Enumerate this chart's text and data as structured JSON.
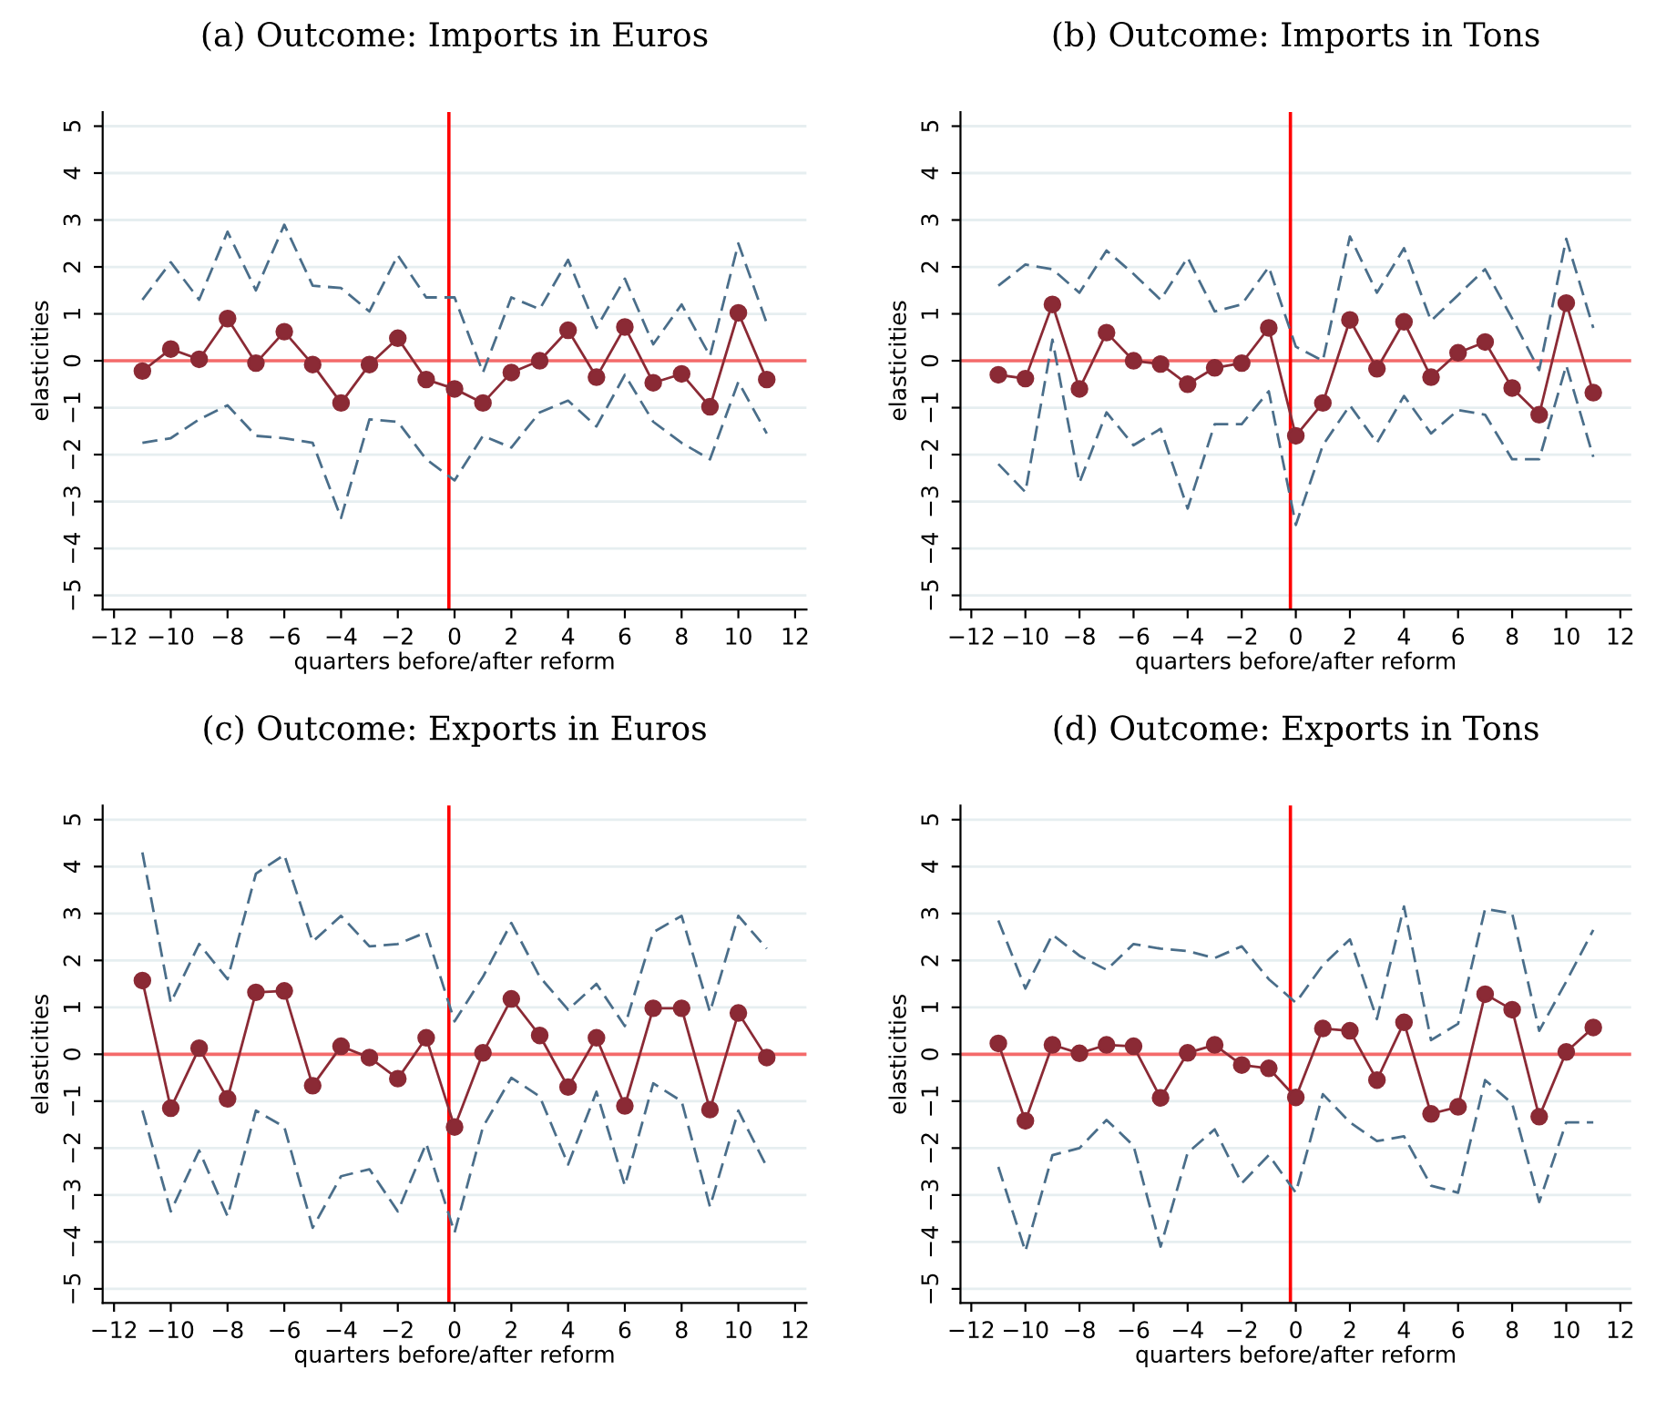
{
  "chart_data": [
    {
      "type": "line",
      "title": "(a) Outcome: Imports in Euros",
      "xlabel": "quarters before/after reform",
      "ylabel": "elasticities",
      "x": [
        -11,
        -10,
        -9,
        -8,
        -7,
        -6,
        -5,
        -4,
        -3,
        -2,
        -1,
        0,
        1,
        2,
        3,
        4,
        5,
        6,
        7,
        8,
        9,
        10,
        11
      ],
      "xlim": [
        -12.4,
        12.4
      ],
      "xticks": [
        -12,
        -10,
        -8,
        -6,
        -4,
        -2,
        0,
        2,
        4,
        6,
        8,
        10,
        12
      ],
      "ylim": [
        -5.3,
        5.3
      ],
      "yticks": [
        -5,
        -4,
        -3,
        -2,
        -1,
        0,
        1,
        2,
        3,
        4,
        5
      ],
      "grid": "y",
      "legend": false,
      "series": [
        {
          "color": "#4a6e8a",
          "line_style": "dashed",
          "marker": "none",
          "values": [
            1.3,
            2.1,
            1.3,
            2.75,
            1.5,
            2.9,
            1.6,
            1.55,
            1.05,
            2.25,
            1.35,
            1.35,
            -0.25,
            1.35,
            1.1,
            2.15,
            0.7,
            1.75,
            0.35,
            1.2,
            0.1,
            2.5,
            0.8
          ]
        },
        {
          "color": "#4a6e8a",
          "line_style": "dashed",
          "marker": "none",
          "values": [
            -1.75,
            -1.65,
            -1.25,
            -0.95,
            -1.6,
            -1.65,
            -1.75,
            -3.35,
            -1.25,
            -1.3,
            -2.1,
            -2.55,
            -1.6,
            -1.85,
            -1.1,
            -0.85,
            -1.4,
            -0.3,
            -1.3,
            -1.75,
            -2.1,
            -0.45,
            -1.55
          ]
        },
        {
          "color": "#8b2a35",
          "line_style": "solid",
          "marker": "circle",
          "values": [
            -0.22,
            0.25,
            0.03,
            0.9,
            -0.05,
            0.62,
            -0.08,
            -0.9,
            -0.08,
            0.48,
            -0.4,
            -0.6,
            -0.9,
            -0.25,
            0.0,
            0.65,
            -0.35,
            0.72,
            -0.47,
            -0.28,
            -0.98,
            1.02,
            -0.4
          ]
        }
      ],
      "ref_lines": [
        {
          "axis": "y",
          "value": 0,
          "color": "#f46a6a"
        },
        {
          "axis": "x",
          "value": -0.2,
          "color": "#ff0000"
        }
      ]
    },
    {
      "type": "line",
      "title": "(b) Outcome: Imports in Tons",
      "xlabel": "quarters before/after reform",
      "ylabel": "elasticities",
      "x": [
        -11,
        -10,
        -9,
        -8,
        -7,
        -6,
        -5,
        -4,
        -3,
        -2,
        -1,
        0,
        1,
        2,
        3,
        4,
        5,
        6,
        7,
        8,
        9,
        10,
        11
      ],
      "xlim": [
        -12.4,
        12.4
      ],
      "xticks": [
        -12,
        -10,
        -8,
        -6,
        -4,
        -2,
        0,
        2,
        4,
        6,
        8,
        10,
        12
      ],
      "ylim": [
        -5.3,
        5.3
      ],
      "yticks": [
        -5,
        -4,
        -3,
        -2,
        -1,
        0,
        1,
        2,
        3,
        4,
        5
      ],
      "grid": "y",
      "legend": false,
      "series": [
        {
          "color": "#4a6e8a",
          "line_style": "dashed",
          "marker": "none",
          "values": [
            1.6,
            2.05,
            1.95,
            1.45,
            2.35,
            1.85,
            1.3,
            2.2,
            1.05,
            1.2,
            2.0,
            0.3,
            0.0,
            2.65,
            1.45,
            2.4,
            0.85,
            1.4,
            1.95,
            0.9,
            -0.2,
            2.6,
            0.7
          ]
        },
        {
          "color": "#4a6e8a",
          "line_style": "dashed",
          "marker": "none",
          "values": [
            -2.2,
            -2.8,
            0.45,
            -2.6,
            -1.1,
            -1.8,
            -1.45,
            -3.15,
            -1.35,
            -1.35,
            -0.65,
            -3.5,
            -1.8,
            -0.95,
            -1.75,
            -0.75,
            -1.55,
            -1.05,
            -1.15,
            -2.1,
            -2.1,
            -0.1,
            -2.05
          ]
        },
        {
          "color": "#8b2a35",
          "line_style": "solid",
          "marker": "circle",
          "values": [
            -0.3,
            -0.38,
            1.2,
            -0.6,
            0.6,
            0.0,
            -0.07,
            -0.5,
            -0.15,
            -0.05,
            0.7,
            -1.6,
            -0.9,
            0.87,
            -0.17,
            0.83,
            -0.35,
            0.17,
            0.4,
            -0.58,
            -1.15,
            1.23,
            -0.68
          ]
        }
      ],
      "ref_lines": [
        {
          "axis": "y",
          "value": 0,
          "color": "#f46a6a"
        },
        {
          "axis": "x",
          "value": -0.2,
          "color": "#ff0000"
        }
      ]
    },
    {
      "type": "line",
      "title": "(c) Outcome: Exports in Euros",
      "xlabel": "quarters before/after reform",
      "ylabel": "elasticities",
      "x": [
        -11,
        -10,
        -9,
        -8,
        -7,
        -6,
        -5,
        -4,
        -3,
        -2,
        -1,
        0,
        1,
        2,
        3,
        4,
        5,
        6,
        7,
        8,
        9,
        10,
        11
      ],
      "xlim": [
        -12.4,
        12.4
      ],
      "xticks": [
        -12,
        -10,
        -8,
        -6,
        -4,
        -2,
        0,
        2,
        4,
        6,
        8,
        10,
        12
      ],
      "ylim": [
        -5.3,
        5.3
      ],
      "yticks": [
        -5,
        -4,
        -3,
        -2,
        -1,
        0,
        1,
        2,
        3,
        4,
        5
      ],
      "grid": "y",
      "legend": false,
      "series": [
        {
          "color": "#4a6e8a",
          "line_style": "dashed",
          "marker": "none",
          "values": [
            4.3,
            1.1,
            2.35,
            1.6,
            3.85,
            4.25,
            2.4,
            2.95,
            2.3,
            2.35,
            2.6,
            0.7,
            1.65,
            2.8,
            1.65,
            0.95,
            1.5,
            0.6,
            2.6,
            2.95,
            0.9,
            2.95,
            2.25
          ]
        },
        {
          "color": "#4a6e8a",
          "line_style": "dashed",
          "marker": "none",
          "values": [
            -1.2,
            -3.35,
            -2.05,
            -3.45,
            -1.2,
            -1.55,
            -3.7,
            -2.6,
            -2.45,
            -3.35,
            -1.9,
            -3.8,
            -1.55,
            -0.5,
            -0.9,
            -2.35,
            -0.8,
            -2.8,
            -0.62,
            -1.0,
            -3.25,
            -1.2,
            -2.4
          ]
        },
        {
          "color": "#8b2a35",
          "line_style": "solid",
          "marker": "circle",
          "values": [
            1.57,
            -1.15,
            0.13,
            -0.95,
            1.32,
            1.35,
            -0.67,
            0.17,
            -0.07,
            -0.52,
            0.35,
            -1.55,
            0.03,
            1.18,
            0.4,
            -0.7,
            0.35,
            -1.1,
            0.98,
            0.98,
            -1.18,
            0.88,
            -0.07
          ]
        }
      ],
      "ref_lines": [
        {
          "axis": "y",
          "value": 0,
          "color": "#f46a6a"
        },
        {
          "axis": "x",
          "value": -0.2,
          "color": "#ff0000"
        }
      ]
    },
    {
      "type": "line",
      "title": "(d) Outcome: Exports in Tons",
      "xlabel": "quarters before/after reform",
      "ylabel": "elasticities",
      "x": [
        -11,
        -10,
        -9,
        -8,
        -7,
        -6,
        -5,
        -4,
        -3,
        -2,
        -1,
        0,
        1,
        2,
        3,
        4,
        5,
        6,
        7,
        8,
        9,
        10,
        11
      ],
      "xlim": [
        -12.4,
        12.4
      ],
      "xticks": [
        -12,
        -10,
        -8,
        -6,
        -4,
        -2,
        0,
        2,
        4,
        6,
        8,
        10,
        12
      ],
      "ylim": [
        -5.3,
        5.3
      ],
      "yticks": [
        -5,
        -4,
        -3,
        -2,
        -1,
        0,
        1,
        2,
        3,
        4,
        5
      ],
      "grid": "y",
      "legend": false,
      "series": [
        {
          "color": "#4a6e8a",
          "line_style": "dashed",
          "marker": "none",
          "values": [
            2.85,
            1.4,
            2.55,
            2.1,
            1.8,
            2.35,
            2.25,
            2.2,
            2.05,
            2.3,
            1.6,
            1.1,
            1.9,
            2.45,
            0.75,
            3.15,
            0.3,
            0.65,
            3.1,
            3.0,
            0.5,
            1.55,
            2.65
          ]
        },
        {
          "color": "#4a6e8a",
          "line_style": "dashed",
          "marker": "none",
          "values": [
            -2.4,
            -4.2,
            -2.15,
            -2.0,
            -1.4,
            -1.95,
            -4.1,
            -2.1,
            -1.6,
            -2.75,
            -2.15,
            -2.95,
            -0.85,
            -1.45,
            -1.85,
            -1.75,
            -2.8,
            -2.95,
            -0.55,
            -1.05,
            -3.15,
            -1.45,
            -1.45
          ]
        },
        {
          "color": "#8b2a35",
          "line_style": "solid",
          "marker": "circle",
          "values": [
            0.23,
            -1.42,
            0.2,
            0.02,
            0.2,
            0.17,
            -0.93,
            0.03,
            0.2,
            -0.23,
            -0.3,
            -0.92,
            0.55,
            0.5,
            -0.55,
            0.68,
            -1.27,
            -1.12,
            1.28,
            0.95,
            -1.33,
            0.05,
            0.57
          ]
        }
      ],
      "ref_lines": [
        {
          "axis": "y",
          "value": 0,
          "color": "#f46a6a"
        },
        {
          "axis": "x",
          "value": -0.2,
          "color": "#ff0000"
        }
      ]
    }
  ]
}
